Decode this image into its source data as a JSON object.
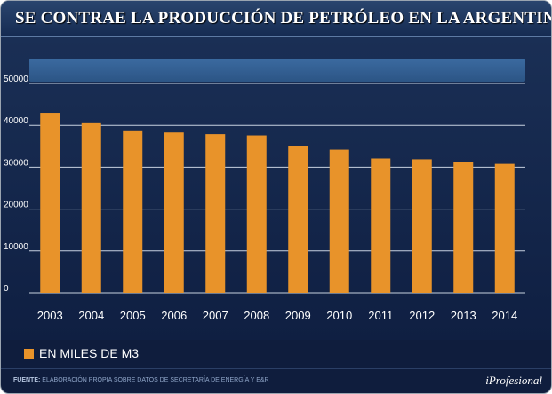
{
  "title": "SE CONTRAE LA PRODUCCIÓN DE PETRÓLEO EN LA ARGENTINA",
  "legend": {
    "label": "EN MILES DE M3"
  },
  "footer": {
    "source_label": "FUENTE:",
    "source_text": "ELABORACIÓN PROPIA SOBRE DATOS DE SECRETARÍA DE ENERGÍA Y E&R",
    "brand": "iProfesional"
  },
  "colors": {
    "bar": "#e8932a",
    "background": "#0f1d3d",
    "band": "#3b6aa0",
    "grid": "#c8d2e0"
  },
  "chart_data": {
    "type": "bar",
    "title": "SE CONTRAE LA PRODUCCIÓN DE PETRÓLEO EN LA ARGENTINA",
    "xlabel": "",
    "ylabel": "",
    "categories": [
      "2003",
      "2004",
      "2005",
      "2006",
      "2007",
      "2008",
      "2009",
      "2010",
      "2011",
      "2012",
      "2013",
      "2014"
    ],
    "series": [
      {
        "name": "EN MILES DE M3",
        "values": [
          43000,
          40500,
          38600,
          38300,
          37900,
          37600,
          35000,
          34200,
          32100,
          31900,
          31300,
          30800
        ]
      }
    ],
    "ylim": [
      0,
      50000
    ],
    "yticks": [
      0,
      10000,
      20000,
      30000,
      40000,
      50000
    ],
    "grid": true,
    "legend_position": "bottom-left"
  }
}
